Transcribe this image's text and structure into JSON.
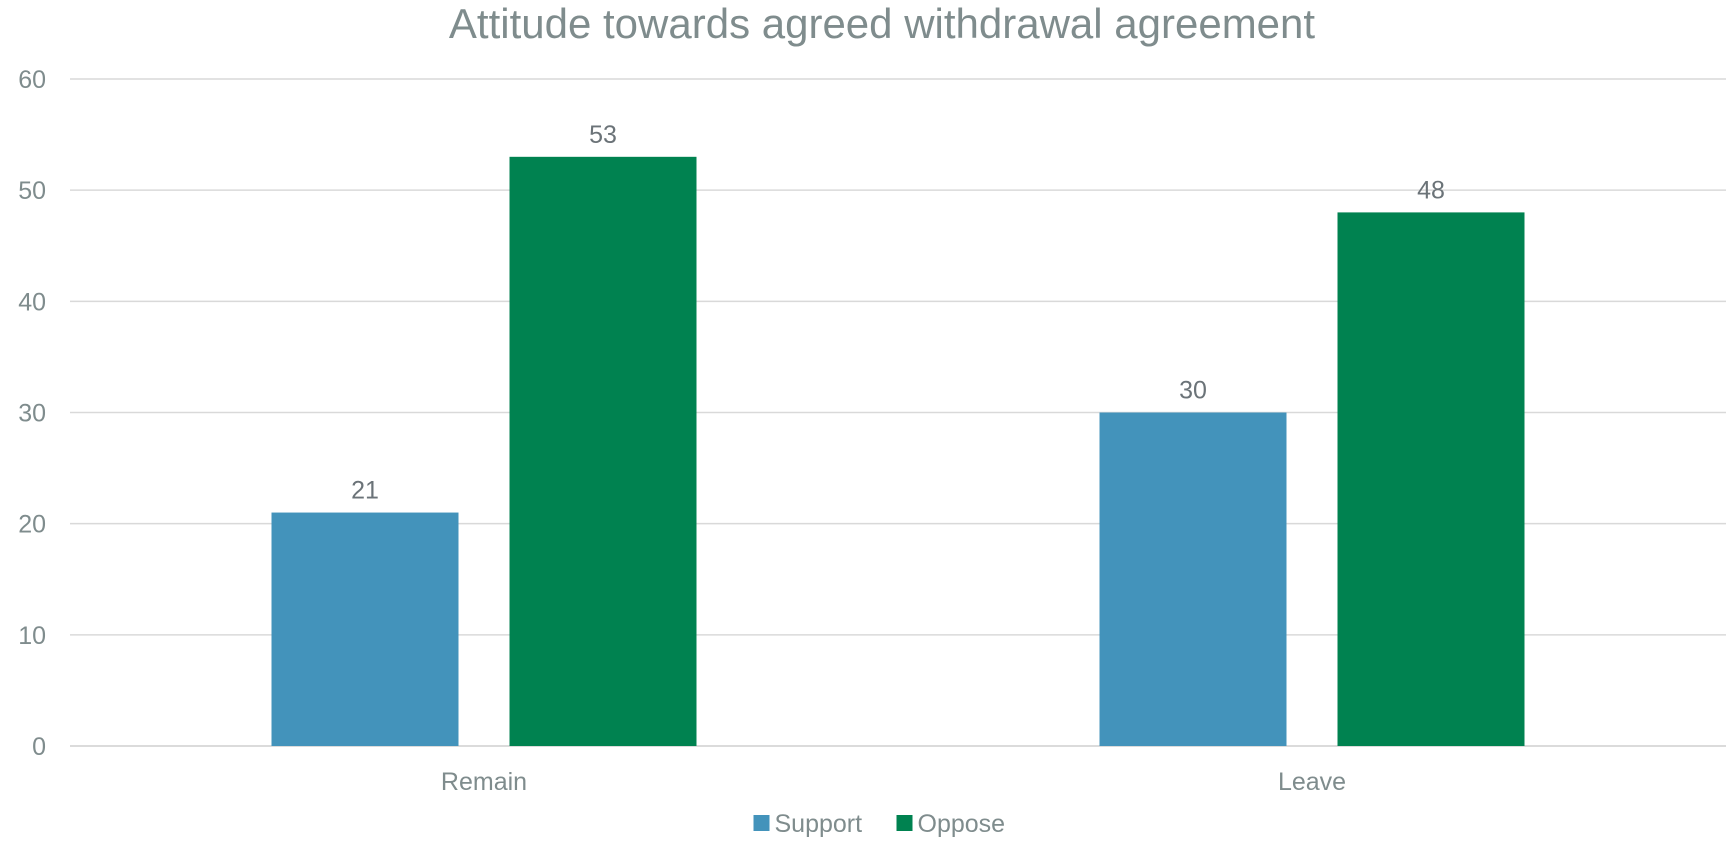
{
  "chart_data": {
    "type": "bar",
    "title": "Attitude towards agreed withdrawal agreement",
    "xlabel": "",
    "ylabel": "",
    "categories": [
      "Remain",
      "Leave"
    ],
    "series": [
      {
        "name": "Support",
        "values": [
          21,
          30
        ],
        "color": "#4393bb"
      },
      {
        "name": "Oppose",
        "values": [
          53,
          48
        ],
        "color": "#008250"
      }
    ],
    "ylim": [
      0,
      60
    ],
    "yticks": [
      0,
      10,
      20,
      30,
      40,
      50,
      60
    ],
    "grid": true,
    "legend_position": "bottom"
  }
}
